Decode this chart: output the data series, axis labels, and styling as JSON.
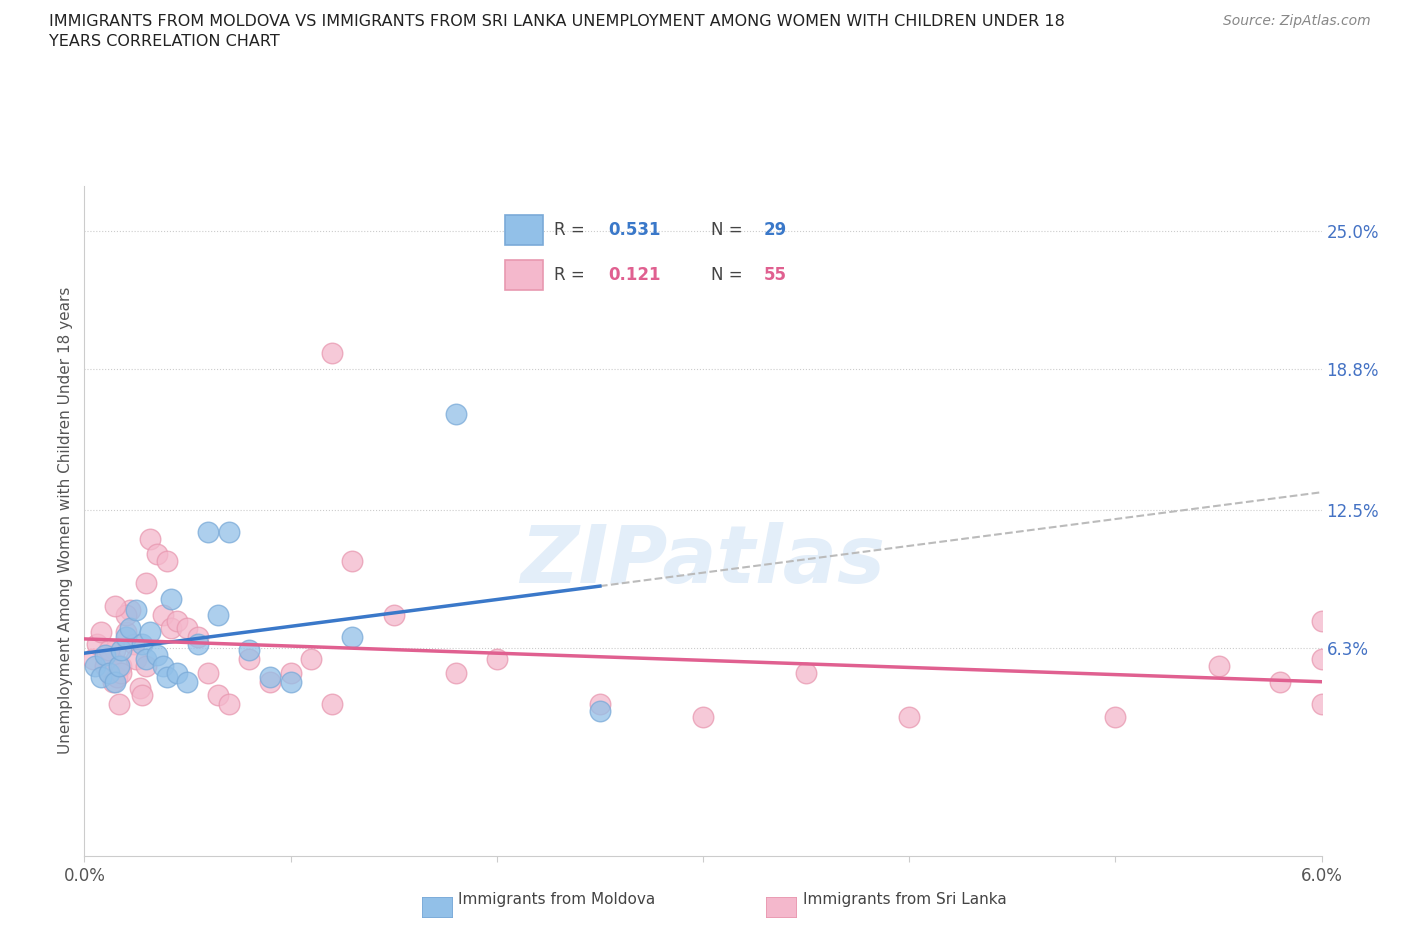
{
  "title": "IMMIGRANTS FROM MOLDOVA VS IMMIGRANTS FROM SRI LANKA UNEMPLOYMENT AMONG WOMEN WITH CHILDREN UNDER 18\nYEARS CORRELATION CHART",
  "source": "Source: ZipAtlas.com",
  "ylabel": "Unemployment Among Women with Children Under 18 years",
  "watermark": "ZIPatlas",
  "moldova_color": "#92c0e8",
  "moldova_edge": "#7aaad8",
  "srilanka_color": "#f4b8cc",
  "srilanka_edge": "#e898b0",
  "line_moldova_color": "#3a78c9",
  "line_srilanka_color": "#e06090",
  "line_extend_color": "#bbbbbb",
  "xlim": [
    0.0,
    6.0
  ],
  "ylim": [
    -3.0,
    27.0
  ],
  "moldova_x": [
    0.05,
    0.08,
    0.1,
    0.12,
    0.15,
    0.17,
    0.18,
    0.2,
    0.22,
    0.25,
    0.28,
    0.3,
    0.32,
    0.35,
    0.38,
    0.4,
    0.42,
    0.45,
    0.5,
    0.55,
    0.6,
    0.65,
    0.7,
    0.8,
    0.9,
    1.0,
    1.3,
    1.8,
    2.5
  ],
  "moldova_y": [
    5.5,
    5.0,
    6.0,
    5.2,
    4.8,
    5.5,
    6.2,
    6.8,
    7.2,
    8.0,
    6.5,
    5.8,
    7.0,
    6.0,
    5.5,
    5.0,
    8.5,
    5.2,
    4.8,
    6.5,
    11.5,
    7.8,
    11.5,
    6.2,
    5.0,
    4.8,
    6.8,
    16.8,
    3.5
  ],
  "srilanka_x": [
    0.04,
    0.06,
    0.08,
    0.1,
    0.11,
    0.12,
    0.13,
    0.14,
    0.15,
    0.16,
    0.17,
    0.18,
    0.2,
    0.22,
    0.24,
    0.25,
    0.27,
    0.28,
    0.3,
    0.32,
    0.35,
    0.38,
    0.4,
    0.42,
    0.45,
    0.5,
    0.55,
    0.6,
    0.65,
    0.7,
    0.8,
    0.9,
    1.0,
    1.1,
    1.2,
    1.3,
    1.5,
    1.8,
    2.0,
    2.5,
    3.0,
    3.5,
    4.0,
    5.0,
    5.5,
    5.8,
    6.0,
    6.0,
    6.0,
    1.2,
    0.3,
    0.2,
    0.18,
    0.15,
    0.12
  ],
  "srilanka_y": [
    5.8,
    6.5,
    7.0,
    5.5,
    6.0,
    5.2,
    5.8,
    4.8,
    6.2,
    5.0,
    3.8,
    5.5,
    7.0,
    8.0,
    6.5,
    5.8,
    4.5,
    4.2,
    9.2,
    11.2,
    10.5,
    7.8,
    10.2,
    7.2,
    7.5,
    7.2,
    6.8,
    5.2,
    4.2,
    3.8,
    5.8,
    4.8,
    5.2,
    5.8,
    19.5,
    10.2,
    7.8,
    5.2,
    5.8,
    3.8,
    3.2,
    5.2,
    3.2,
    3.2,
    5.5,
    4.8,
    3.8,
    5.8,
    7.5,
    3.8,
    5.5,
    7.8,
    5.2,
    8.2,
    6.2
  ]
}
